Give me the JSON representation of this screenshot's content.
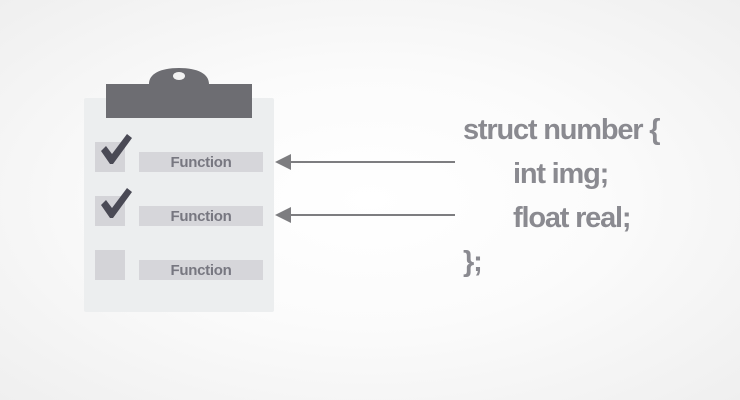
{
  "checklist": {
    "items": [
      {
        "label": "Function",
        "checked": true
      },
      {
        "label": "Function",
        "checked": true
      },
      {
        "label": "Function",
        "checked": false
      }
    ]
  },
  "code": {
    "line1": "struct number {",
    "line2": "int img;",
    "line3": "float real;",
    "line4": "};"
  },
  "colors": {
    "clip": "#6d6d72",
    "check": "#4a4a55",
    "arrow": "#7d7d80",
    "code_text": "#8a8a90"
  }
}
